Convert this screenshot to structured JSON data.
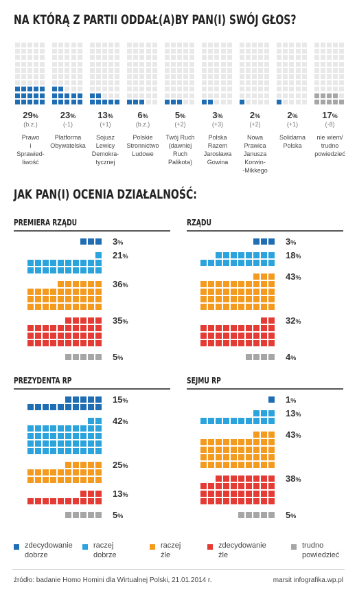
{
  "title1": "NA KTÓRĄ Z PARTII ODDAŁ(A)BY PAN(I) SWÓJ GŁOS?",
  "title2": "JAK PAN(I) OCENIA DZIAŁALNOŚĆ:",
  "colors": {
    "zdecydowanie_dobrze": "#1f6db3",
    "raczej_dobrze": "#2ba3dd",
    "raczej_zle": "#f39a1f",
    "zdecydowanie_zle": "#e53b35",
    "trudno": "#a6a6a6",
    "empty": "#e8e8e8"
  },
  "chart_data": [
    {
      "type": "bar",
      "title": "NA KTÓRĄ Z PARTII ODDAŁ(A)BY PAN(I) SWÓJ GŁOS?",
      "unit": "%",
      "parties": [
        {
          "name": "Prawo i Sprawied-liwość",
          "lines": [
            "Prawo",
            "i",
            "Sprawied-",
            "liwość"
          ],
          "value": 29,
          "change": "(b.z.)"
        },
        {
          "name": "Platforma Obywatelska",
          "lines": [
            "Platforma",
            "Obywatelska"
          ],
          "value": 23,
          "change": "(-1)"
        },
        {
          "name": "Sojusz Lewicy Demokra-tycznej",
          "lines": [
            "Sojusz",
            "Lewicy",
            "Demokra-",
            "tycznej"
          ],
          "value": 13,
          "change": "(+1)"
        },
        {
          "name": "Polskie Stronnictwo Ludowe",
          "lines": [
            "Polskie",
            "Stronnictwo",
            "Ludowe"
          ],
          "value": 6,
          "change": "(b.z.)"
        },
        {
          "name": "Twój Ruch (dawniej Ruch Palikota)",
          "lines": [
            "Twój Ruch",
            "(dawniej",
            "Ruch",
            "Palikota)"
          ],
          "value": 5,
          "change": "(+2)"
        },
        {
          "name": "Polska Razem Jarosława Gowina",
          "lines": [
            "Polska",
            "Razem",
            "Jarosława",
            "Gowina"
          ],
          "value": 3,
          "change": "(+3)"
        },
        {
          "name": "Nowa Prawica Janusza Korwin-Mikkego",
          "lines": [
            "Nowa",
            "Prawica",
            "Janusza",
            "Korwin-",
            "-Mikkego"
          ],
          "value": 2,
          "change": "(+2)"
        },
        {
          "name": "Solidarna Polska",
          "lines": [
            "Solidarna",
            "Polska"
          ],
          "value": 2,
          "change": "(+1)"
        },
        {
          "name": "nie wiem/ trudno powiedzieć",
          "lines": [
            "nie wiem/",
            "trudno",
            "powiedzieć"
          ],
          "value": 17,
          "change": "(-8)",
          "grey": true
        }
      ]
    },
    {
      "type": "bar",
      "title": "JAK PAN(I) OCENIA DZIAŁALNOŚĆ:",
      "unit": "%",
      "categories": [
        "zdecydowanie dobrze",
        "raczej dobrze",
        "raczej źle",
        "zdecydowanie źle",
        "trudno powiedzieć"
      ],
      "panels": [
        {
          "name": "PREMIERA RZĄDU",
          "values": [
            3,
            21,
            36,
            35,
            5
          ]
        },
        {
          "name": "RZĄDU",
          "values": [
            3,
            18,
            43,
            32,
            4
          ]
        },
        {
          "name": "PREZYDENTA RP",
          "values": [
            15,
            42,
            25,
            13,
            5
          ]
        },
        {
          "name": "SEJMU RP",
          "values": [
            1,
            13,
            43,
            38,
            5
          ]
        }
      ]
    }
  ],
  "legend": [
    {
      "label1": "zdecydowanie",
      "label2": "dobrze",
      "color": "#1f6db3"
    },
    {
      "label1": "raczej",
      "label2": "dobrze",
      "color": "#2ba3dd"
    },
    {
      "label1": "raczej",
      "label2": "źle",
      "color": "#f39a1f"
    },
    {
      "label1": "zdecydowanie",
      "label2": "źle",
      "color": "#e53b35"
    },
    {
      "label1": "trudno",
      "label2": "powiedzieć",
      "color": "#a6a6a6"
    }
  ],
  "footer": {
    "source": "źródło: badanie Homo Homini dla Wirtualnej Polski, 21.01.2014 r.",
    "credit": "marsit infografika.wp.pl"
  }
}
